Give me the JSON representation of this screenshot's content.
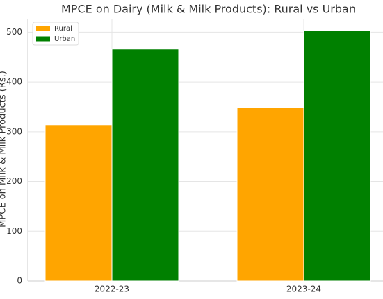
{
  "chart_data": {
    "type": "bar",
    "title": "MPCE on Dairy (Milk & Milk Products): Rural vs Urban",
    "y_label": "MPCE on Milk & Milk Products (Rs.)",
    "categories": [
      "2022-23",
      "2023-24"
    ],
    "series": [
      {
        "name": "Rural",
        "color": "#ffa500",
        "values": [
          314,
          348
        ]
      },
      {
        "name": "Urban",
        "color": "#008000",
        "values": [
          466,
          503
        ]
      }
    ],
    "ylim": [
      0,
      527
    ],
    "yticks": [
      0,
      100,
      200,
      300,
      400,
      500
    ],
    "grid": true,
    "legend": "upper left"
  }
}
